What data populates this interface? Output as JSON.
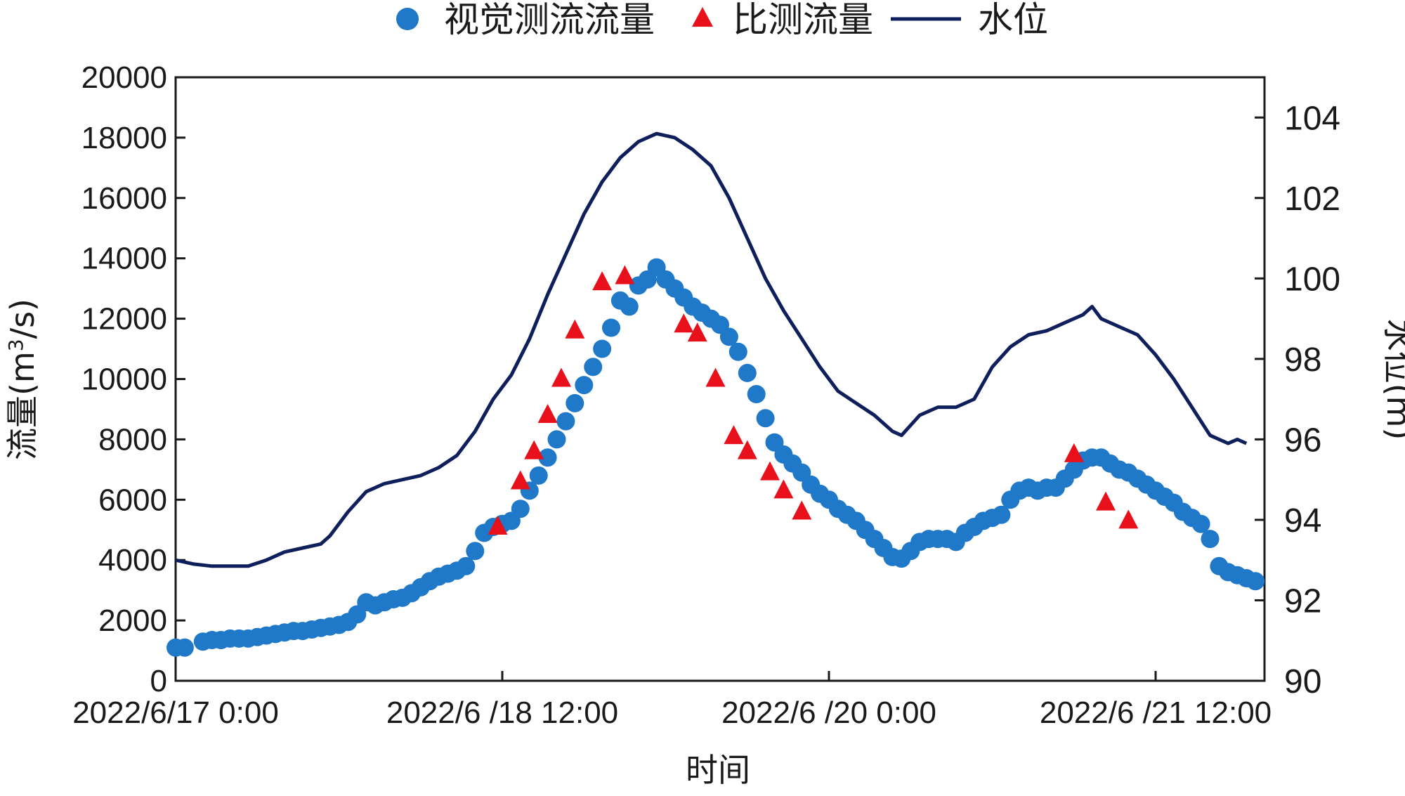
{
  "chart_data": {
    "type": "scatter",
    "xlabel": "时间",
    "ylabel_left": "流量(m³/s)",
    "ylabel_left_base": "流量(m",
    "ylabel_left_sup": "3",
    "ylabel_left_tail": "/s)",
    "ylabel_right": "水位(m)",
    "x_range": [
      "2022-06-17 00:00",
      "2022-06-22 00:00"
    ],
    "x_ticks": [
      "2022/6/17 0:00",
      "2022/6 /18 12:00",
      "2022/6 /20 0:00",
      "2022/6 /21 12:00"
    ],
    "y_left_range": [
      0,
      20000
    ],
    "y_left_ticks": [
      "0",
      "2000",
      "4000",
      "6000",
      "8000",
      "10000",
      "12000",
      "14000",
      "16000",
      "18000",
      "20000"
    ],
    "y_right_range": [
      90,
      105
    ],
    "y_right_ticks": [
      "90",
      "92",
      "94",
      "96",
      "98",
      "100",
      "102",
      "104"
    ],
    "grid": false,
    "legend_position": "top",
    "legend": [
      "视觉测流流量",
      "比测流量",
      "水位"
    ],
    "colors": {
      "visual": "#1f78c8",
      "compare": "#e8101a",
      "level": "#0f1f5c",
      "axis": "#1a1a1a"
    },
    "series": [
      {
        "name": "视觉测流流量",
        "axis": "left",
        "marker": "circle",
        "points": [
          [
            "2022-06-17 00:00",
            1100
          ],
          [
            "2022-06-17 01:00",
            1100
          ],
          [
            "2022-06-17 03:00",
            1300
          ],
          [
            "2022-06-17 04:00",
            1350
          ],
          [
            "2022-06-17 05:00",
            1350
          ],
          [
            "2022-06-17 06:00",
            1400
          ],
          [
            "2022-06-17 07:00",
            1400
          ],
          [
            "2022-06-17 08:00",
            1400
          ],
          [
            "2022-06-17 09:00",
            1450
          ],
          [
            "2022-06-17 10:00",
            1500
          ],
          [
            "2022-06-17 11:00",
            1550
          ],
          [
            "2022-06-17 12:00",
            1600
          ],
          [
            "2022-06-17 13:00",
            1650
          ],
          [
            "2022-06-17 14:00",
            1650
          ],
          [
            "2022-06-17 15:00",
            1700
          ],
          [
            "2022-06-17 16:00",
            1750
          ],
          [
            "2022-06-17 17:00",
            1800
          ],
          [
            "2022-06-17 18:00",
            1850
          ],
          [
            "2022-06-17 19:00",
            1950
          ],
          [
            "2022-06-17 20:00",
            2200
          ],
          [
            "2022-06-17 21:00",
            2600
          ],
          [
            "2022-06-17 22:00",
            2500
          ],
          [
            "2022-06-17 23:00",
            2600
          ],
          [
            "2022-06-18 00:00",
            2700
          ],
          [
            "2022-06-18 01:00",
            2750
          ],
          [
            "2022-06-18 02:00",
            2900
          ],
          [
            "2022-06-18 03:00",
            3100
          ],
          [
            "2022-06-18 04:00",
            3300
          ],
          [
            "2022-06-18 05:00",
            3450
          ],
          [
            "2022-06-18 06:00",
            3550
          ],
          [
            "2022-06-18 07:00",
            3650
          ],
          [
            "2022-06-18 08:00",
            3800
          ],
          [
            "2022-06-18 09:00",
            4300
          ],
          [
            "2022-06-18 10:00",
            4900
          ],
          [
            "2022-06-18 11:00",
            5100
          ],
          [
            "2022-06-18 12:00",
            5200
          ],
          [
            "2022-06-18 13:00",
            5300
          ],
          [
            "2022-06-18 14:00",
            5700
          ],
          [
            "2022-06-18 15:00",
            6300
          ],
          [
            "2022-06-18 16:00",
            6800
          ],
          [
            "2022-06-18 17:00",
            7400
          ],
          [
            "2022-06-18 18:00",
            8000
          ],
          [
            "2022-06-18 19:00",
            8600
          ],
          [
            "2022-06-18 20:00",
            9200
          ],
          [
            "2022-06-18 21:00",
            9800
          ],
          [
            "2022-06-18 22:00",
            10400
          ],
          [
            "2022-06-18 23:00",
            11000
          ],
          [
            "2022-06-19 00:00",
            11700
          ],
          [
            "2022-06-19 01:00",
            12600
          ],
          [
            "2022-06-19 02:00",
            12400
          ],
          [
            "2022-06-19 03:00",
            13100
          ],
          [
            "2022-06-19 04:00",
            13300
          ],
          [
            "2022-06-19 05:00",
            13700
          ],
          [
            "2022-06-19 06:00",
            13300
          ],
          [
            "2022-06-19 07:00",
            13000
          ],
          [
            "2022-06-19 08:00",
            12700
          ],
          [
            "2022-06-19 09:00",
            12400
          ],
          [
            "2022-06-19 10:00",
            12200
          ],
          [
            "2022-06-19 11:00",
            12000
          ],
          [
            "2022-06-19 12:00",
            11800
          ],
          [
            "2022-06-19 13:00",
            11400
          ],
          [
            "2022-06-19 14:00",
            10900
          ],
          [
            "2022-06-19 15:00",
            10200
          ],
          [
            "2022-06-19 16:00",
            9500
          ],
          [
            "2022-06-19 17:00",
            8700
          ],
          [
            "2022-06-19 18:00",
            7900
          ],
          [
            "2022-06-19 19:00",
            7500
          ],
          [
            "2022-06-19 20:00",
            7200
          ],
          [
            "2022-06-19 21:00",
            6900
          ],
          [
            "2022-06-19 22:00",
            6500
          ],
          [
            "2022-06-19 23:00",
            6200
          ],
          [
            "2022-06-20 00:00",
            6000
          ],
          [
            "2022-06-20 01:00",
            5700
          ],
          [
            "2022-06-20 02:00",
            5500
          ],
          [
            "2022-06-20 03:00",
            5300
          ],
          [
            "2022-06-20 04:00",
            5000
          ],
          [
            "2022-06-20 05:00",
            4700
          ],
          [
            "2022-06-20 06:00",
            4400
          ],
          [
            "2022-06-20 07:00",
            4100
          ],
          [
            "2022-06-20 08:00",
            4050
          ],
          [
            "2022-06-20 09:00",
            4300
          ],
          [
            "2022-06-20 10:00",
            4600
          ],
          [
            "2022-06-20 11:00",
            4700
          ],
          [
            "2022-06-20 12:00",
            4700
          ],
          [
            "2022-06-20 13:00",
            4700
          ],
          [
            "2022-06-20 14:00",
            4600
          ],
          [
            "2022-06-20 15:00",
            4900
          ],
          [
            "2022-06-20 16:00",
            5100
          ],
          [
            "2022-06-20 17:00",
            5300
          ],
          [
            "2022-06-20 18:00",
            5400
          ],
          [
            "2022-06-20 19:00",
            5500
          ],
          [
            "2022-06-20 20:00",
            6000
          ],
          [
            "2022-06-20 21:00",
            6300
          ],
          [
            "2022-06-20 22:00",
            6400
          ],
          [
            "2022-06-20 23:00",
            6300
          ],
          [
            "2022-06-21 00:00",
            6400
          ],
          [
            "2022-06-21 01:00",
            6400
          ],
          [
            "2022-06-21 02:00",
            6700
          ],
          [
            "2022-06-21 03:00",
            7000
          ],
          [
            "2022-06-21 04:00",
            7300
          ],
          [
            "2022-06-21 05:00",
            7400
          ],
          [
            "2022-06-21 06:00",
            7400
          ],
          [
            "2022-06-21 07:00",
            7200
          ],
          [
            "2022-06-21 08:00",
            7000
          ],
          [
            "2022-06-21 09:00",
            6900
          ],
          [
            "2022-06-21 10:00",
            6700
          ],
          [
            "2022-06-21 11:00",
            6500
          ],
          [
            "2022-06-21 12:00",
            6300
          ],
          [
            "2022-06-21 13:00",
            6100
          ],
          [
            "2022-06-21 14:00",
            5900
          ],
          [
            "2022-06-21 15:00",
            5600
          ],
          [
            "2022-06-21 16:00",
            5400
          ],
          [
            "2022-06-21 17:00",
            5200
          ],
          [
            "2022-06-21 18:00",
            4700
          ],
          [
            "2022-06-21 19:00",
            3800
          ],
          [
            "2022-06-21 20:00",
            3600
          ],
          [
            "2022-06-21 21:00",
            3500
          ],
          [
            "2022-06-21 22:00",
            3400
          ],
          [
            "2022-06-21 23:00",
            3300
          ]
        ]
      },
      {
        "name": "比测流量",
        "axis": "left",
        "marker": "triangle",
        "points": [
          [
            "2022-06-18 11:30",
            5100
          ],
          [
            "2022-06-18 14:00",
            6600
          ],
          [
            "2022-06-18 15:30",
            7600
          ],
          [
            "2022-06-18 17:00",
            8800
          ],
          [
            "2022-06-18 18:30",
            10000
          ],
          [
            "2022-06-18 20:00",
            11600
          ],
          [
            "2022-06-18 23:00",
            13200
          ],
          [
            "2022-06-19 01:30",
            13400
          ],
          [
            "2022-06-19 08:00",
            11800
          ],
          [
            "2022-06-19 09:30",
            11500
          ],
          [
            "2022-06-19 11:30",
            10000
          ],
          [
            "2022-06-19 13:30",
            8100
          ],
          [
            "2022-06-19 15:00",
            7600
          ],
          [
            "2022-06-19 17:30",
            6900
          ],
          [
            "2022-06-19 19:00",
            6300
          ],
          [
            "2022-06-19 21:00",
            5600
          ],
          [
            "2022-06-21 03:00",
            7500
          ],
          [
            "2022-06-21 06:30",
            5900
          ],
          [
            "2022-06-21 09:00",
            5300
          ]
        ]
      },
      {
        "name": "水位",
        "axis": "right",
        "marker": "line",
        "points": [
          [
            "2022-06-17 00:00",
            93.0
          ],
          [
            "2022-06-17 02:00",
            92.9
          ],
          [
            "2022-06-17 04:00",
            92.85
          ],
          [
            "2022-06-17 06:00",
            92.85
          ],
          [
            "2022-06-17 08:00",
            92.85
          ],
          [
            "2022-06-17 10:00",
            93.0
          ],
          [
            "2022-06-17 12:00",
            93.2
          ],
          [
            "2022-06-17 14:00",
            93.3
          ],
          [
            "2022-06-17 16:00",
            93.4
          ],
          [
            "2022-06-17 17:00",
            93.6
          ],
          [
            "2022-06-17 19:00",
            94.2
          ],
          [
            "2022-06-17 21:00",
            94.7
          ],
          [
            "2022-06-17 23:00",
            94.9
          ],
          [
            "2022-06-18 01:00",
            95.0
          ],
          [
            "2022-06-18 03:00",
            95.1
          ],
          [
            "2022-06-18 05:00",
            95.3
          ],
          [
            "2022-06-18 07:00",
            95.6
          ],
          [
            "2022-06-18 09:00",
            96.2
          ],
          [
            "2022-06-18 11:00",
            97.0
          ],
          [
            "2022-06-18 13:00",
            97.6
          ],
          [
            "2022-06-18 15:00",
            98.5
          ],
          [
            "2022-06-18 17:00",
            99.6
          ],
          [
            "2022-06-18 19:00",
            100.6
          ],
          [
            "2022-06-18 21:00",
            101.6
          ],
          [
            "2022-06-18 23:00",
            102.4
          ],
          [
            "2022-06-19 01:00",
            103.0
          ],
          [
            "2022-06-19 03:00",
            103.4
          ],
          [
            "2022-06-19 05:00",
            103.6
          ],
          [
            "2022-06-19 07:00",
            103.5
          ],
          [
            "2022-06-19 09:00",
            103.2
          ],
          [
            "2022-06-19 11:00",
            102.8
          ],
          [
            "2022-06-19 13:00",
            102.0
          ],
          [
            "2022-06-19 15:00",
            101.0
          ],
          [
            "2022-06-19 17:00",
            100.0
          ],
          [
            "2022-06-19 19:00",
            99.2
          ],
          [
            "2022-06-19 21:00",
            98.5
          ],
          [
            "2022-06-19 23:00",
            97.8
          ],
          [
            "2022-06-20 01:00",
            97.2
          ],
          [
            "2022-06-20 03:00",
            96.9
          ],
          [
            "2022-06-20 05:00",
            96.6
          ],
          [
            "2022-06-20 07:00",
            96.2
          ],
          [
            "2022-06-20 08:00",
            96.1
          ],
          [
            "2022-06-20 10:00",
            96.6
          ],
          [
            "2022-06-20 12:00",
            96.8
          ],
          [
            "2022-06-20 14:00",
            96.8
          ],
          [
            "2022-06-20 16:00",
            97.0
          ],
          [
            "2022-06-20 18:00",
            97.8
          ],
          [
            "2022-06-20 20:00",
            98.3
          ],
          [
            "2022-06-20 22:00",
            98.6
          ],
          [
            "2022-06-21 00:00",
            98.7
          ],
          [
            "2022-06-21 02:00",
            98.9
          ],
          [
            "2022-06-21 04:00",
            99.1
          ],
          [
            "2022-06-21 05:00",
            99.3
          ],
          [
            "2022-06-21 06:00",
            99.0
          ],
          [
            "2022-06-21 08:00",
            98.8
          ],
          [
            "2022-06-21 10:00",
            98.6
          ],
          [
            "2022-06-21 12:00",
            98.1
          ],
          [
            "2022-06-21 14:00",
            97.5
          ],
          [
            "2022-06-21 16:00",
            96.8
          ],
          [
            "2022-06-21 18:00",
            96.1
          ],
          [
            "2022-06-21 20:00",
            95.9
          ],
          [
            "2022-06-21 21:00",
            96.0
          ],
          [
            "2022-06-21 22:00",
            95.9
          ]
        ]
      }
    ]
  }
}
